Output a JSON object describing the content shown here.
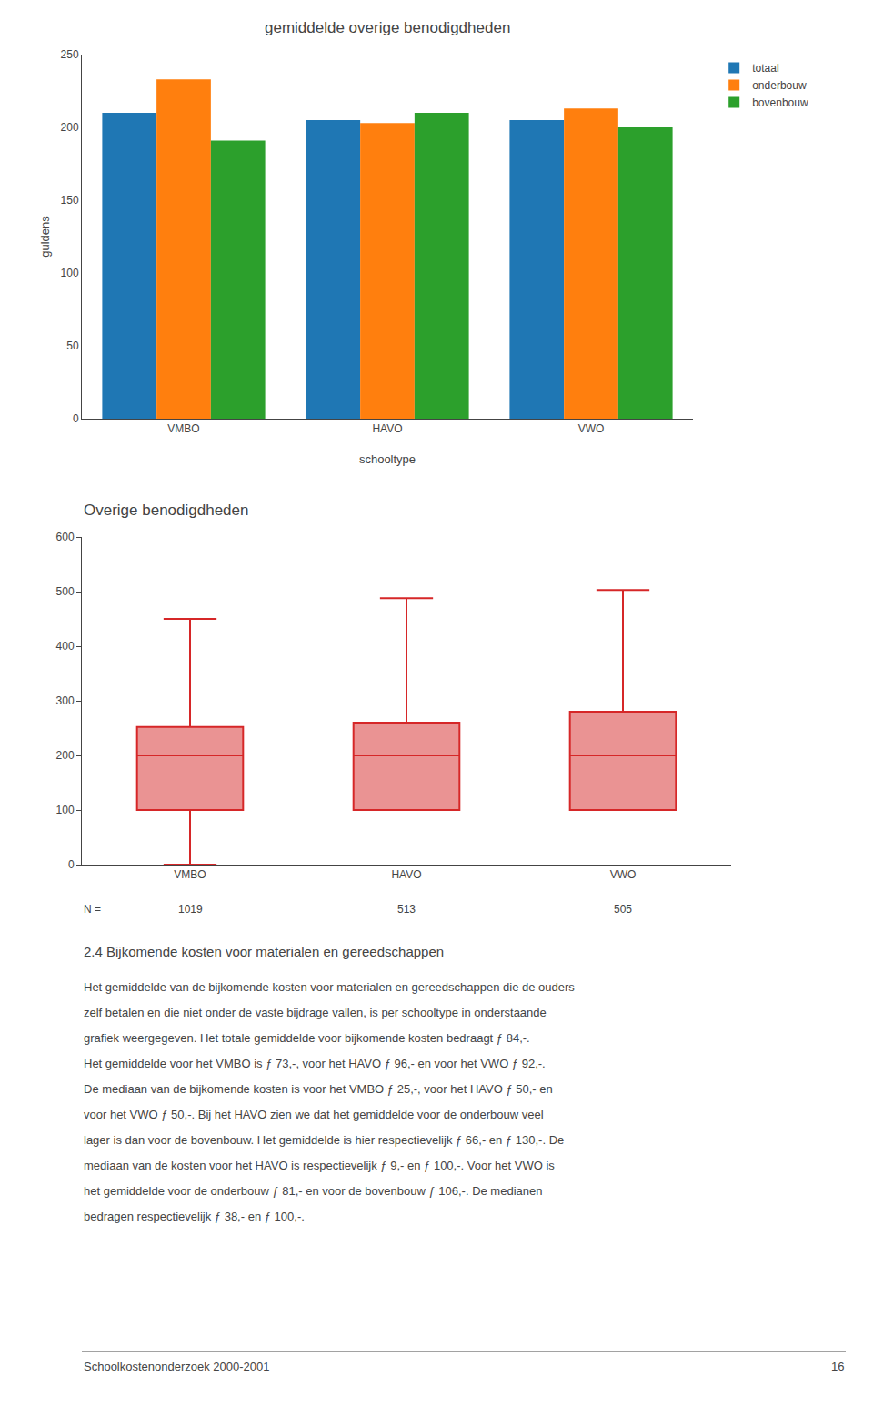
{
  "chart_data": [
    {
      "type": "bar",
      "title": "gemiddelde overige benodigdheden",
      "xlabel": "schooltype",
      "ylabel": "guldens",
      "categories": [
        "VMBO",
        "HAVO",
        "VWO"
      ],
      "series": [
        {
          "name": "totaal",
          "values": [
            210,
            205,
            205
          ]
        },
        {
          "name": "onderbouw",
          "values": [
            233,
            203,
            213
          ]
        },
        {
          "name": "bovenbouw",
          "values": [
            191,
            210,
            200
          ]
        }
      ],
      "ylim": [
        0,
        250
      ],
      "yticks": [
        0,
        50,
        100,
        150,
        200,
        250
      ],
      "grid": false,
      "legend": "right"
    },
    {
      "type": "box",
      "title": "Overige benodigdheden",
      "categories": [
        "VMBO",
        "HAVO",
        "VWO"
      ],
      "q1": [
        100,
        100,
        100
      ],
      "median": [
        200,
        200,
        200
      ],
      "q3": [
        252,
        260,
        280
      ],
      "whislo": [
        0,
        100,
        100
      ],
      "whishi": [
        450,
        488,
        503
      ],
      "n_label": "N =",
      "n": [
        1019,
        513,
        505
      ],
      "ylim": [
        0,
        600
      ],
      "yticks": [
        0,
        100,
        200,
        300,
        400,
        500,
        600
      ],
      "grid": false
    }
  ],
  "section_title": "2.4 Bijkomende kosten voor materialen en gereedschappen",
  "body_lines": [
    "Het gemiddelde van de bijkomende kosten voor materialen en gereedschappen die de ouders",
    "zelf betalen en die niet onder de vaste bijdrage vallen, is per schooltype in onderstaande",
    "grafiek weergegeven. Het totale gemiddelde voor bijkomende kosten bedraagt ƒ 84,-.",
    "Het gemiddelde voor het VMBO is ƒ 73,-, voor het HAVO ƒ 96,- en voor het VWO ƒ 92,-.",
    "De mediaan van de bijkomende kosten is voor het VMBO ƒ 25,-, voor het HAVO ƒ 50,- en",
    "voor het VWO ƒ 50,-. Bij het HAVO zien we dat het gemiddelde voor de onderbouw veel",
    "lager is dan voor de bovenbouw. Het gemiddelde is hier respectievelijk ƒ 66,- en ƒ 130,-. De",
    "mediaan van de kosten voor het HAVO is respectievelijk ƒ 9,- en ƒ 100,-. Voor het VWO is",
    "het gemiddelde voor de onderbouw ƒ 81,- en voor de bovenbouw ƒ 106,-. De medianen",
    "bedragen respectievelijk ƒ 38,- en ƒ 100,-."
  ],
  "footer_left": "Schoolkostenonderzoek 2000-2001",
  "footer_right": "16"
}
